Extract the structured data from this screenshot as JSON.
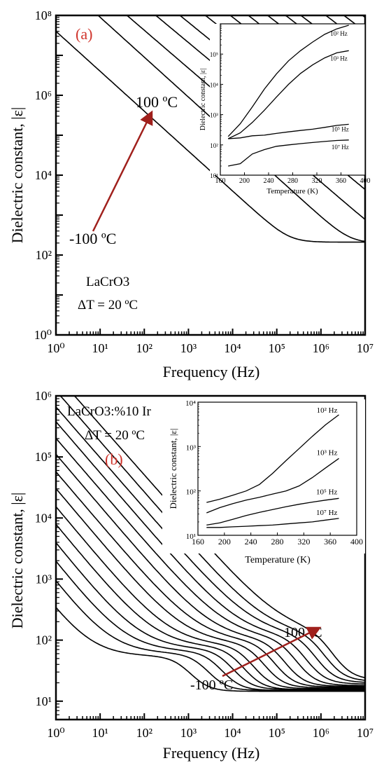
{
  "figure": {
    "xlabel": "Frequency (Hz)",
    "ylabel": "Dielectric constant, |ε|",
    "inset_xlabel": "Temperature (K)",
    "inset_ylabel": "Dielectric constant, |ε|"
  },
  "chart_data": [
    {
      "type": "line",
      "panel_label": "(a)",
      "xlabel": "Frequency (Hz)",
      "ylabel": "Dielectric constant, |ε|",
      "xscale": "log",
      "yscale": "log",
      "xlim": [
        1,
        10000000
      ],
      "ylim": [
        1,
        100000000
      ],
      "x_tick_labels": [
        "10⁰",
        "10¹",
        "10²",
        "10³",
        "10⁴",
        "10⁵",
        "10⁶",
        "10⁷"
      ],
      "y_tick_labels": [
        "10⁰",
        "10²",
        "10⁴",
        "10⁶",
        "10⁸"
      ],
      "annotations": {
        "material": "LaCrO3",
        "delta_t": "ΔT = 20 ºC",
        "arrow_start": "-100 ºC",
        "arrow_end": "100 ºC"
      },
      "curve_model": "log10|ε| = log10(ε∞) + 0.5·log10(1 + 10^(2(n·log10(f0) + log10(A) − log10(ε∞) − n·log10(f))))",
      "curves": [
        {
          "A": 8000,
          "n": 1.0,
          "eps_inf": 210,
          "f0": 5000
        },
        {
          "A": 30000,
          "n": 1.0,
          "eps_inf": 200,
          "f0": 30000
        },
        {
          "A": 60000,
          "n": 0.95,
          "eps_inf": 190,
          "f0": 100000
        },
        {
          "A": 130000,
          "n": 0.92,
          "eps_inf": 180,
          "f0": 250000
        },
        {
          "A": 250000,
          "n": 0.9,
          "eps_inf": 165,
          "f0": 500000
        },
        {
          "A": 500000,
          "n": 0.88,
          "eps_inf": 150,
          "f0": 1000000
        },
        {
          "A": 900000,
          "n": 0.87,
          "eps_inf": 130,
          "f0": 2000000
        },
        {
          "A": 1500000,
          "n": 0.86,
          "eps_inf": 110,
          "f0": 3000000
        },
        {
          "A": 2400000,
          "n": 0.85,
          "eps_inf": 90,
          "f0": 5000000
        },
        {
          "A": 4000000,
          "n": 0.85,
          "eps_inf": 70,
          "f0": 7000000
        },
        {
          "A": 6000000,
          "n": 0.84,
          "eps_inf": 50,
          "f0": 10000000
        },
        {
          "A": 10000000,
          "n": 0.84,
          "eps_inf": 35,
          "f0": 20000000
        },
        {
          "A": 16000000,
          "n": 0.83,
          "eps_inf": 25,
          "f0": 30000000
        },
        {
          "A": 24000000,
          "n": 0.82,
          "eps_inf": 17,
          "f0": 50000000
        }
      ],
      "inset": {
        "xlabel": "Temperature (K)",
        "ylabel": "Dielectric constant, |ε|",
        "yscale": "log",
        "xlim": [
          160,
          400
        ],
        "ylim": [
          1,
          100000
        ],
        "x_ticks": [
          160,
          200,
          240,
          280,
          320,
          360,
          400
        ],
        "y_tick_labels": [
          "10¹",
          "10²",
          "10³",
          "10⁴",
          "10⁵"
        ],
        "x": [
          173,
          193,
          213,
          233,
          253,
          273,
          293,
          313,
          333,
          353,
          373
        ],
        "series": [
          {
            "name": "10² Hz",
            "values": [
              19,
              50,
              180,
              700,
              2200,
              6000,
              13000,
              25000,
              45000,
              68000,
              90000
            ]
          },
          {
            "name": "10³ Hz",
            "values": [
              16,
              25,
              55,
              140,
              380,
              1000,
              2300,
              4400,
              7500,
              11000,
              13000
            ]
          },
          {
            "name": "10⁵ Hz",
            "values": [
              16,
              17,
              20,
              21,
              24,
              27,
              30,
              33,
              38,
              44,
              48
            ]
          },
          {
            "name": "10⁷ Hz",
            "values": [
              2,
              2.4,
              5,
              7,
              9,
              10,
              11,
              12,
              13,
              14,
              14.5
            ]
          }
        ]
      }
    },
    {
      "type": "line",
      "panel_label": "(b)",
      "xlabel": "Frequency (Hz)",
      "ylabel": "Dielectric constant, |ε|",
      "xscale": "log",
      "yscale": "log",
      "xlim": [
        1,
        10000000
      ],
      "ylim": [
        5,
        1000000
      ],
      "x_tick_labels": [
        "10⁰",
        "10¹",
        "10²",
        "10³",
        "10⁴",
        "10⁵",
        "10⁶",
        "10⁷"
      ],
      "y_tick_labels": [
        "10¹",
        "10²",
        "10³",
        "10⁴",
        "10⁵",
        "10⁶"
      ],
      "annotations": {
        "material": "LaCrO3:%10 Ir",
        "delta_t": "ΔT = 20 ºC",
        "arrow_start": "-100 ºC",
        "arrow_end": "100 ºC"
      },
      "curve_model": "log10|ε| = log10(ε∞) + log10(1 + (A1/ε∞)·(f1/f)^n) + log10(1 + (A2/ε∞)·(f2/f)^2 / (1 + (f2/f)^2))",
      "curves": [
        {
          "eps_inf": 14.5,
          "A1": 110,
          "n": 1.0,
          "f1": 0.7,
          "A2": 40,
          "f2": 800
        },
        {
          "eps_inf": 15,
          "A1": 150,
          "n": 0.95,
          "f1": 1.5,
          "A2": 45,
          "f2": 2000
        },
        {
          "eps_inf": 15,
          "A1": 160,
          "n": 0.92,
          "f1": 3,
          "A2": 50,
          "f2": 4000
        },
        {
          "eps_inf": 15.5,
          "A1": 170,
          "n": 0.9,
          "f1": 6,
          "A2": 55,
          "f2": 7000
        },
        {
          "eps_inf": 15.5,
          "A1": 180,
          "n": 0.88,
          "f1": 12,
          "A2": 60,
          "f2": 12000
        },
        {
          "eps_inf": 16,
          "A1": 190,
          "n": 0.87,
          "f1": 24,
          "A2": 65,
          "f2": 20000
        },
        {
          "eps_inf": 16.5,
          "A1": 200,
          "n": 0.86,
          "f1": 50,
          "A2": 70,
          "f2": 35000
        },
        {
          "eps_inf": 17,
          "A1": 210,
          "n": 0.85,
          "f1": 100,
          "A2": 75,
          "f2": 60000
        },
        {
          "eps_inf": 17.5,
          "A1": 220,
          "n": 0.85,
          "f1": 200,
          "A2": 80,
          "f2": 100000
        },
        {
          "eps_inf": 18,
          "A1": 230,
          "n": 0.84,
          "f1": 400,
          "A2": 85,
          "f2": 180000
        },
        {
          "eps_inf": 19,
          "A1": 240,
          "n": 0.84,
          "f1": 800,
          "A2": 90,
          "f2": 300000
        },
        {
          "eps_inf": 20,
          "A1": 250,
          "n": 0.83,
          "f1": 1600,
          "A2": 95,
          "f2": 500000
        },
        {
          "eps_inf": 21,
          "A1": 260,
          "n": 0.83,
          "f1": 3200,
          "A2": 100,
          "f2": 800000
        },
        {
          "eps_inf": 22,
          "A1": 270,
          "n": 0.82,
          "f1": 7000,
          "A2": 105,
          "f2": 1200000
        }
      ],
      "inset": {
        "xlabel": "Temperature (K)",
        "ylabel": "Dielectric constant, |ε|",
        "yscale": "log",
        "xlim": [
          160,
          400
        ],
        "ylim": [
          10,
          10000
        ],
        "x_ticks": [
          160,
          200,
          240,
          280,
          320,
          360,
          400
        ],
        "y_tick_labels": [
          "10¹",
          "10²",
          "10³",
          "10⁴"
        ],
        "x": [
          173,
          193,
          213,
          233,
          253,
          273,
          293,
          313,
          333,
          353,
          373
        ],
        "series": [
          {
            "name": "10² Hz",
            "values": [
              55,
              65,
              80,
              100,
              140,
              250,
              480,
              900,
              1700,
              3100,
              5200
            ]
          },
          {
            "name": "10³ Hz",
            "values": [
              32,
              42,
              52,
              62,
              72,
              85,
              100,
              130,
              200,
              330,
              540
            ]
          },
          {
            "name": "10⁵ Hz",
            "values": [
              17,
              19,
              23,
              28,
              33,
              38,
              44,
              50,
              56,
              62,
              68
            ]
          },
          {
            "name": "10⁷ Hz",
            "values": [
              15,
              15,
              15.5,
              16,
              16.5,
              17,
              18,
              19,
              20,
              22,
              24
            ]
          }
        ]
      }
    }
  ]
}
